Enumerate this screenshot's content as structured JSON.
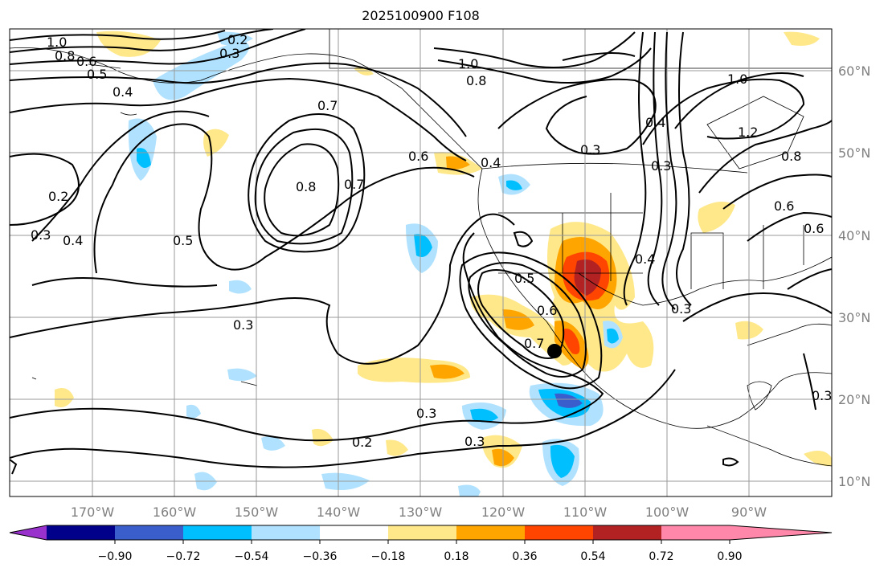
{
  "title": "2025100900 F108",
  "map": {
    "lon_labels": [
      "170°W",
      "160°W",
      "150°W",
      "140°W",
      "130°W",
      "120°W",
      "110°W",
      "100°W",
      "90°W"
    ],
    "lat_labels": [
      "60°N",
      "50°N",
      "40°N",
      "30°N",
      "20°N",
      "10°N"
    ],
    "contour_labels": [
      {
        "text": "1.0"
      },
      {
        "text": "0.8"
      },
      {
        "text": "0.6"
      },
      {
        "text": "0.5"
      },
      {
        "text": "0.4"
      },
      {
        "text": "0.2"
      },
      {
        "text": "0.3"
      },
      {
        "text": "0.7"
      },
      {
        "text": "0.8"
      },
      {
        "text": "0.7"
      },
      {
        "text": "0.6"
      },
      {
        "text": "0.4"
      },
      {
        "text": "0.5"
      },
      {
        "text": "0.2"
      },
      {
        "text": "0.3"
      },
      {
        "text": "0.4"
      },
      {
        "text": "0.3"
      },
      {
        "text": "1.0"
      },
      {
        "text": "0.8"
      },
      {
        "text": "0.3"
      },
      {
        "text": "0.4"
      },
      {
        "text": "1.0"
      },
      {
        "text": "1.2"
      },
      {
        "text": "0.8"
      },
      {
        "text": "0.6"
      },
      {
        "text": "0.3"
      },
      {
        "text": "0.5"
      },
      {
        "text": "0.6"
      },
      {
        "text": "0.7"
      },
      {
        "text": "0.4"
      },
      {
        "text": "0.3"
      },
      {
        "text": "0.3"
      },
      {
        "text": "0.2"
      },
      {
        "text": "0.3"
      },
      {
        "text": "0.6"
      },
      {
        "text": "0.3"
      }
    ],
    "marker": "storm-center-dot"
  },
  "colorbar": {
    "ticks": [
      "−0.90",
      "−0.72",
      "−0.54",
      "−0.36",
      "−0.18",
      "0.18",
      "0.36",
      "0.54",
      "0.72",
      "0.90"
    ],
    "colors": [
      "#9932cc",
      "#00008b",
      "#3a5fcd",
      "#00bfff",
      "#b0e2ff",
      "#ffffff",
      "#ffe88a",
      "#ffa500",
      "#ff4500",
      "#b22222",
      "#ff88aa"
    ]
  }
}
